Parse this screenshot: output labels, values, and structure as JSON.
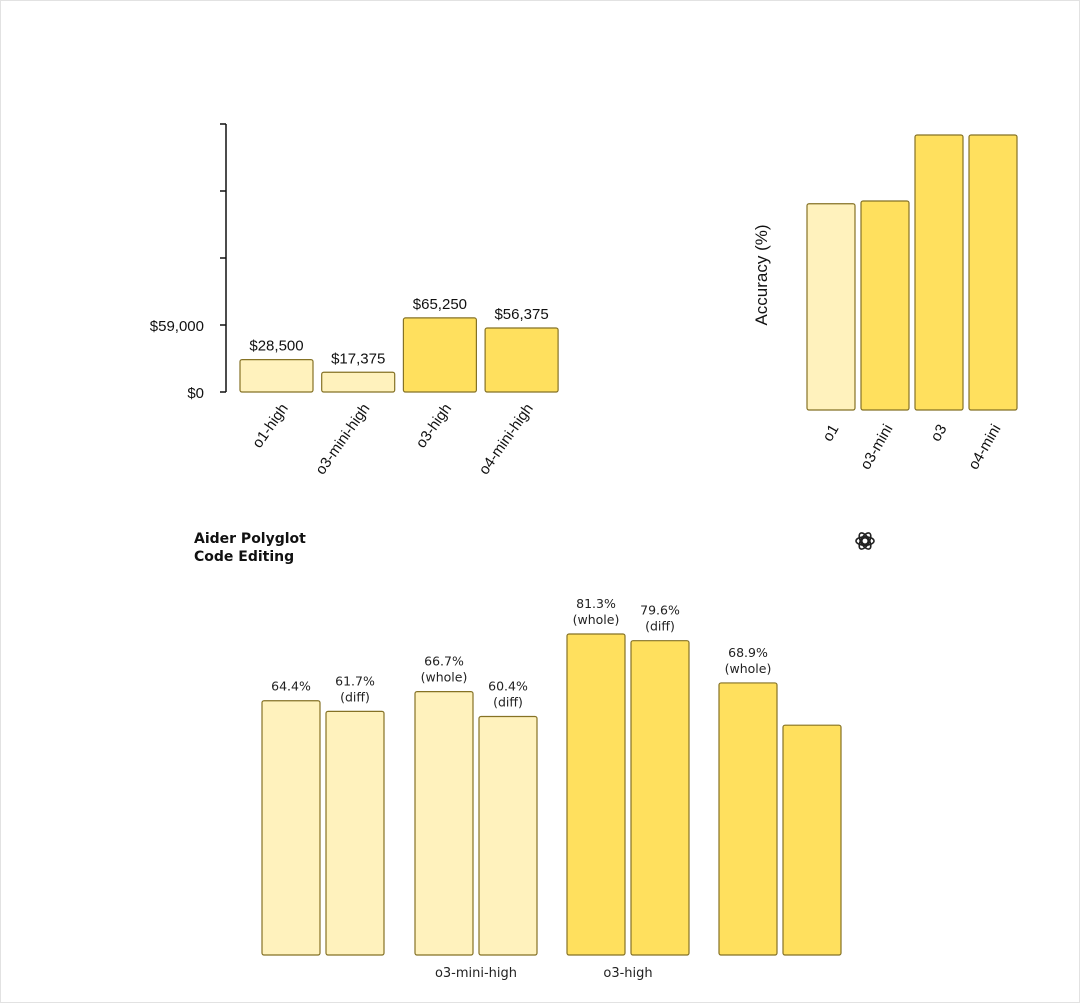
{
  "colors": {
    "light_bar": "#fff2bd",
    "dark_bar": "#ffe05e",
    "bar_stroke": "#857225",
    "axis": "#111111"
  },
  "icons": {
    "logo": "openai-logo-icon"
  },
  "chart_data": [
    {
      "type": "bar",
      "title": "",
      "xlabel": "",
      "ylabel": "",
      "categories": [
        "o1-high",
        "o3-mini-high",
        "o3-high",
        "o4-mini-high"
      ],
      "values": [
        28500,
        17375,
        65250,
        56375
      ],
      "value_labels": [
        "$28,500",
        "$17,375",
        "$65,250",
        "$56,375"
      ],
      "bar_colors": [
        "light",
        "light",
        "dark",
        "dark"
      ],
      "y_tick_labels": [
        "$0",
        "$59,000"
      ],
      "ylim": [
        0,
        236000
      ],
      "grid": false,
      "legend": "none"
    },
    {
      "type": "bar",
      "title": "",
      "xlabel": "",
      "ylabel": "Accuracy (%)",
      "categories": [
        "o1",
        "o3-mini",
        "o3",
        "o4-mini"
      ],
      "values": [
        75,
        76,
        100,
        100
      ],
      "bar_colors": [
        "light",
        "dark",
        "dark",
        "dark"
      ],
      "ylim": [
        0,
        100
      ],
      "grid": false,
      "legend": "none"
    },
    {
      "type": "bar",
      "title": "Aider Polyglot\nCode Editing",
      "title_lines": [
        "Aider Polyglot",
        "Code Editing"
      ],
      "xlabel": "",
      "ylabel": "",
      "categories": [
        "",
        "o3-mini-high",
        "o3-high",
        ""
      ],
      "series": [
        {
          "values": [
            64.4,
            66.7,
            81.3,
            68.9
          ],
          "labels": [
            [
              "64.4%",
              ""
            ],
            [
              "66.7%",
              "(whole)"
            ],
            [
              "81.3%",
              "(whole)"
            ],
            [
              "68.9%",
              "(whole)"
            ]
          ]
        },
        {
          "values": [
            61.7,
            60.4,
            79.6,
            58.2
          ],
          "labels": [
            [
              "61.7%",
              "(diff)"
            ],
            [
              "60.4%",
              "(diff)"
            ],
            [
              "79.6%",
              "(diff)"
            ],
            [
              "",
              ""
            ]
          ]
        }
      ],
      "bar_colors": [
        "light",
        "light",
        "dark",
        "dark"
      ],
      "ylim": [
        0,
        100
      ],
      "grid": false,
      "legend": "none"
    }
  ]
}
